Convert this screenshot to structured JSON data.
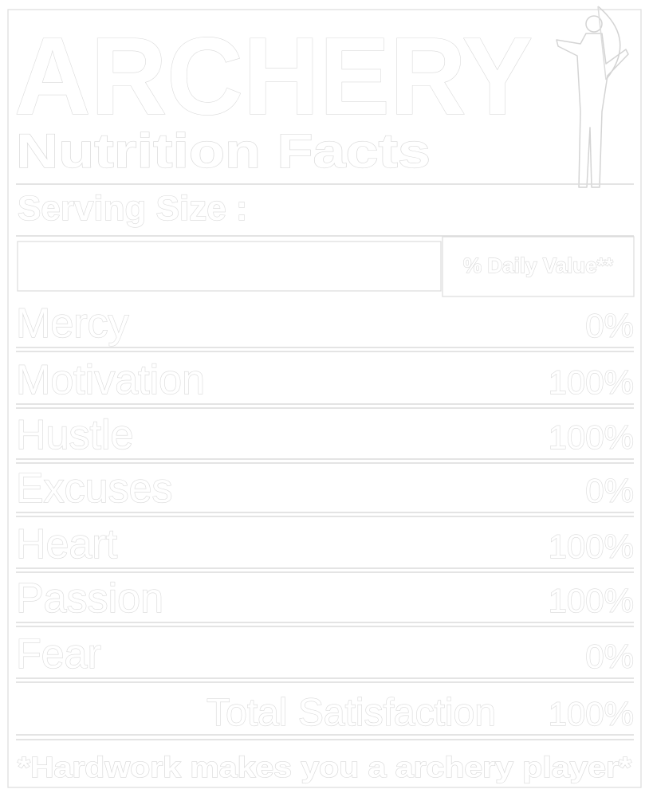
{
  "title": "ARCHERY",
  "subtitle": "Nutrition Facts",
  "serving_size": "Serving Size :",
  "daily_value_header": "% Daily Value**",
  "rows": [
    {
      "label": "Mercy",
      "value": "0%"
    },
    {
      "label": "Motivation",
      "value": "100%"
    },
    {
      "label": "Hustle",
      "value": "100%"
    },
    {
      "label": "Excuses",
      "value": "0%"
    },
    {
      "label": "Heart",
      "value": "100%"
    },
    {
      "label": "Passion",
      "value": "100%"
    },
    {
      "label": "Fear",
      "value": "0%"
    }
  ],
  "total": {
    "label": "Total Satisfaction",
    "value": "100%"
  },
  "footer": "*Hardwork makes you a archery player*"
}
